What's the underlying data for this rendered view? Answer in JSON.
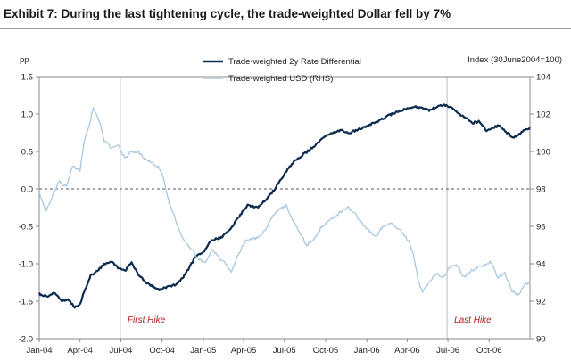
{
  "header": {
    "title": "Exhibit 7: During the last tightening cycle, the trade-weighted Dollar fell by 7%"
  },
  "chart_data": {
    "type": "line",
    "title": "Exhibit 7: During the last tightening cycle, the trade-weighted Dollar fell by 7%",
    "left_axis": {
      "unit_label": "pp",
      "ylim": [
        -2.0,
        1.5
      ],
      "ticks": [
        "1.5",
        "1.0",
        "0.5",
        "0.0",
        "-0.5",
        "-1.0",
        "-1.5",
        "-2.0"
      ]
    },
    "right_axis": {
      "unit_label": "Index (30June2004=100)",
      "ylim": [
        90,
        104
      ],
      "ticks": [
        "104",
        "102",
        "100",
        "98",
        "96",
        "94",
        "92",
        "90"
      ]
    },
    "x_axis": {
      "start": "2004-01",
      "end": "2006-12",
      "tick_labels": [
        "Jan-04",
        "Apr-04",
        "Jul-04",
        "Oct-04",
        "Jan-05",
        "Apr-05",
        "Jul-05",
        "Oct-05",
        "Jan-06",
        "Apr-06",
        "Jul-06",
        "Oct-06"
      ]
    },
    "zero_line": 0.0,
    "legend": [
      "Trade-weighted 2y Rate Differential",
      "Trade-weighted USD (RHS)"
    ],
    "annotations": [
      {
        "text": "First Hike",
        "date": "2004-06-30"
      },
      {
        "text": "Last Hike",
        "date": "2006-06-29"
      }
    ],
    "colors": {
      "rate_diff": "#0d2b4e",
      "usd": "#a9c8e0",
      "hike_text": "#b22222",
      "event_line": "#bbbbbb"
    },
    "series": [
      {
        "name": "Trade-weighted 2y Rate Differential",
        "axis": "left",
        "points": [
          [
            "2004-01-01",
            -1.4
          ],
          [
            "2004-01-20",
            -1.45
          ],
          [
            "2004-02-05",
            -1.38
          ],
          [
            "2004-02-20",
            -1.5
          ],
          [
            "2004-03-05",
            -1.47
          ],
          [
            "2004-03-20",
            -1.58
          ],
          [
            "2004-04-01",
            -1.54
          ],
          [
            "2004-04-10",
            -1.38
          ],
          [
            "2004-04-25",
            -1.15
          ],
          [
            "2004-05-10",
            -1.1
          ],
          [
            "2004-05-25",
            -1.0
          ],
          [
            "2004-06-10",
            -0.97
          ],
          [
            "2004-06-25",
            -1.05
          ],
          [
            "2004-07-10",
            -1.1
          ],
          [
            "2004-07-25",
            -0.98
          ],
          [
            "2004-08-10",
            -1.15
          ],
          [
            "2004-08-25",
            -1.25
          ],
          [
            "2004-09-10",
            -1.3
          ],
          [
            "2004-09-25",
            -1.35
          ],
          [
            "2004-10-15",
            -1.3
          ],
          [
            "2004-11-01",
            -1.28
          ],
          [
            "2004-11-15",
            -1.2
          ],
          [
            "2004-12-01",
            -1.05
          ],
          [
            "2004-12-15",
            -0.9
          ],
          [
            "2005-01-01",
            -0.85
          ],
          [
            "2005-01-20",
            -0.68
          ],
          [
            "2005-02-10",
            -0.65
          ],
          [
            "2005-03-01",
            -0.55
          ],
          [
            "2005-03-20",
            -0.38
          ],
          [
            "2005-04-10",
            -0.22
          ],
          [
            "2005-05-01",
            -0.25
          ],
          [
            "2005-05-20",
            -0.15
          ],
          [
            "2005-06-10",
            0.0
          ],
          [
            "2005-07-01",
            0.2
          ],
          [
            "2005-07-20",
            0.35
          ],
          [
            "2005-08-10",
            0.45
          ],
          [
            "2005-09-01",
            0.55
          ],
          [
            "2005-09-25",
            0.68
          ],
          [
            "2005-10-15",
            0.75
          ],
          [
            "2005-11-05",
            0.78
          ],
          [
            "2005-11-25",
            0.75
          ],
          [
            "2005-12-15",
            0.8
          ],
          [
            "2006-01-05",
            0.85
          ],
          [
            "2006-01-25",
            0.9
          ],
          [
            "2006-02-15",
            0.97
          ],
          [
            "2006-03-05",
            1.02
          ],
          [
            "2006-03-25",
            1.06
          ],
          [
            "2006-04-15",
            1.1
          ],
          [
            "2006-05-05",
            1.08
          ],
          [
            "2006-05-20",
            1.05
          ],
          [
            "2006-06-10",
            1.1
          ],
          [
            "2006-06-25",
            1.12
          ],
          [
            "2006-07-10",
            1.08
          ],
          [
            "2006-07-25",
            1.0
          ],
          [
            "2006-08-10",
            0.95
          ],
          [
            "2006-08-25",
            0.88
          ],
          [
            "2006-09-10",
            0.9
          ],
          [
            "2006-09-25",
            0.78
          ],
          [
            "2006-10-10",
            0.82
          ],
          [
            "2006-10-25",
            0.85
          ],
          [
            "2006-11-10",
            0.75
          ],
          [
            "2006-11-25",
            0.68
          ],
          [
            "2006-12-10",
            0.75
          ],
          [
            "2006-12-31",
            0.82
          ]
        ]
      },
      {
        "name": "Trade-weighted USD (RHS)",
        "axis": "right",
        "points": [
          [
            "2004-01-01",
            97.8
          ],
          [
            "2004-01-15",
            96.8
          ],
          [
            "2004-02-01",
            97.7
          ],
          [
            "2004-02-15",
            98.4
          ],
          [
            "2004-03-01",
            98.1
          ],
          [
            "2004-03-15",
            99.2
          ],
          [
            "2004-04-01",
            99.0
          ],
          [
            "2004-04-10",
            100.5
          ],
          [
            "2004-04-20",
            101.3
          ],
          [
            "2004-05-01",
            102.3
          ],
          [
            "2004-05-08",
            101.9
          ],
          [
            "2004-05-15",
            101.6
          ],
          [
            "2004-05-25",
            100.6
          ],
          [
            "2004-06-10",
            100.2
          ],
          [
            "2004-06-25",
            100.4
          ],
          [
            "2004-07-10",
            99.6
          ],
          [
            "2004-07-25",
            100.0
          ],
          [
            "2004-08-10",
            99.9
          ],
          [
            "2004-08-25",
            99.6
          ],
          [
            "2004-09-10",
            99.4
          ],
          [
            "2004-09-25",
            99.1
          ],
          [
            "2004-10-05",
            98.5
          ],
          [
            "2004-10-15",
            97.4
          ],
          [
            "2004-10-25",
            96.8
          ],
          [
            "2004-11-05",
            96.0
          ],
          [
            "2004-11-20",
            95.2
          ],
          [
            "2004-12-05",
            94.8
          ],
          [
            "2004-12-20",
            94.3
          ],
          [
            "2005-01-05",
            94.0
          ],
          [
            "2005-01-20",
            94.8
          ],
          [
            "2005-02-05",
            94.3
          ],
          [
            "2005-02-20",
            94.0
          ],
          [
            "2005-03-05",
            93.6
          ],
          [
            "2005-03-20",
            94.5
          ],
          [
            "2005-04-05",
            95.2
          ],
          [
            "2005-04-20",
            95.3
          ],
          [
            "2005-05-05",
            95.4
          ],
          [
            "2005-05-20",
            95.8
          ],
          [
            "2005-06-05",
            96.6
          ],
          [
            "2005-06-20",
            96.9
          ],
          [
            "2005-07-05",
            97.1
          ],
          [
            "2005-07-20",
            96.3
          ],
          [
            "2005-08-05",
            95.6
          ],
          [
            "2005-08-20",
            95.0
          ],
          [
            "2005-09-05",
            95.3
          ],
          [
            "2005-09-20",
            95.9
          ],
          [
            "2005-10-05",
            96.3
          ],
          [
            "2005-10-20",
            96.5
          ],
          [
            "2005-11-05",
            96.8
          ],
          [
            "2005-11-20",
            97.0
          ],
          [
            "2005-12-05",
            96.7
          ],
          [
            "2005-12-20",
            96.2
          ],
          [
            "2006-01-05",
            95.8
          ],
          [
            "2006-01-20",
            95.4
          ],
          [
            "2006-02-05",
            96.0
          ],
          [
            "2006-02-20",
            96.2
          ],
          [
            "2006-03-05",
            96.0
          ],
          [
            "2006-03-20",
            95.7
          ],
          [
            "2006-04-05",
            95.2
          ],
          [
            "2006-04-15",
            94.5
          ],
          [
            "2006-04-25",
            93.2
          ],
          [
            "2006-05-05",
            92.5
          ],
          [
            "2006-05-20",
            93.0
          ],
          [
            "2006-06-05",
            93.5
          ],
          [
            "2006-06-20",
            93.2
          ],
          [
            "2006-07-05",
            93.8
          ],
          [
            "2006-07-20",
            94.0
          ],
          [
            "2006-08-05",
            93.3
          ],
          [
            "2006-08-20",
            93.6
          ],
          [
            "2006-09-05",
            93.8
          ],
          [
            "2006-09-20",
            93.9
          ],
          [
            "2006-10-05",
            94.1
          ],
          [
            "2006-10-20",
            93.3
          ],
          [
            "2006-11-05",
            93.5
          ],
          [
            "2006-11-20",
            92.6
          ],
          [
            "2006-12-05",
            92.3
          ],
          [
            "2006-12-20",
            92.9
          ],
          [
            "2006-12-31",
            93.0
          ]
        ]
      }
    ]
  }
}
